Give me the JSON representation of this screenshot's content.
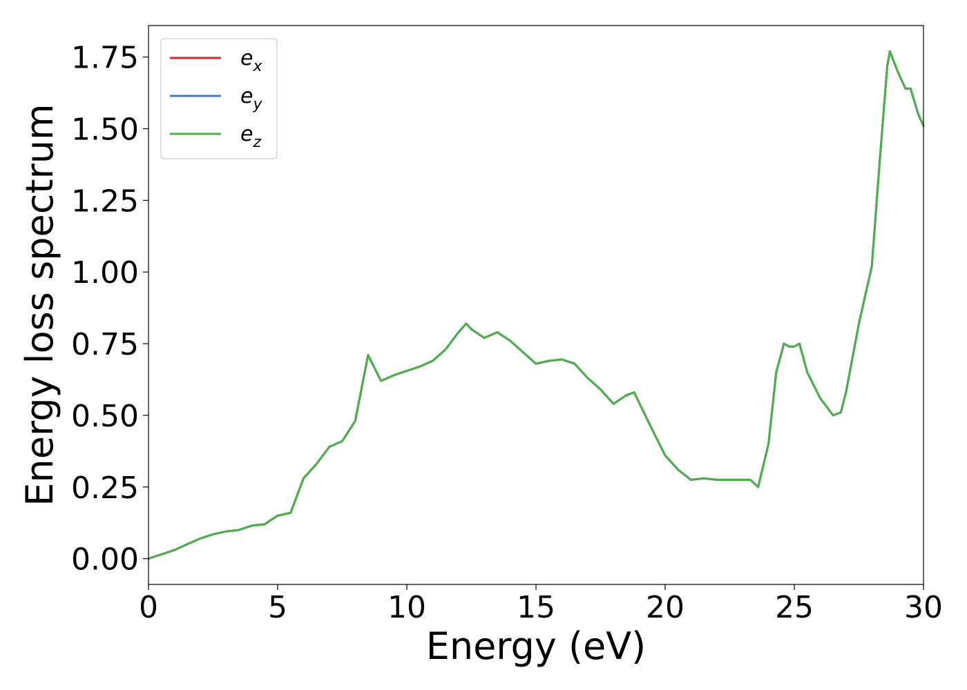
{
  "chart_data": {
    "type": "line",
    "xlabel": "Energy (eV)",
    "ylabel": "Energy loss spectrum",
    "xlim": [
      0,
      30
    ],
    "ylim": [
      -0.09,
      1.86
    ],
    "xticks": [
      "0",
      "5",
      "10",
      "15",
      "20",
      "25",
      "30"
    ],
    "yticks": [
      "0.00",
      "0.25",
      "0.50",
      "0.75",
      "1.00",
      "1.25",
      "1.50",
      "1.75"
    ],
    "grid": false,
    "legend_position": "top-left",
    "series": [
      {
        "name": "e_x",
        "label_base": "e",
        "label_sub": "x",
        "color": "#d62728",
        "x": [
          0,
          0.5,
          1,
          1.5,
          2,
          2.5,
          3,
          3.5,
          4,
          4.5,
          5,
          5.5,
          6,
          6.5,
          7,
          7.5,
          8,
          8.5,
          9,
          9.5,
          10,
          10.5,
          11,
          11.5,
          12,
          12.3,
          12.5,
          13,
          13.5,
          14,
          14.5,
          15,
          15.5,
          16,
          16.5,
          17,
          17.5,
          18,
          18.5,
          18.8,
          19.5,
          20,
          20.5,
          21,
          21.5,
          22,
          22.5,
          23,
          23.3,
          23.6,
          24,
          24.3,
          24.6,
          24.8,
          25,
          25.2,
          25.5,
          26,
          26.5,
          26.8,
          27,
          27.5,
          28,
          28.3,
          28.6,
          28.7,
          29,
          29.3,
          29.5,
          29.8,
          30
        ],
        "y": [
          0.0,
          0.015,
          0.03,
          0.05,
          0.07,
          0.085,
          0.095,
          0.1,
          0.115,
          0.12,
          0.15,
          0.16,
          0.28,
          0.33,
          0.39,
          0.41,
          0.48,
          0.71,
          0.62,
          0.64,
          0.655,
          0.67,
          0.69,
          0.73,
          0.79,
          0.82,
          0.8,
          0.77,
          0.79,
          0.76,
          0.72,
          0.68,
          0.69,
          0.695,
          0.68,
          0.63,
          0.59,
          0.54,
          0.57,
          0.58,
          0.45,
          0.36,
          0.31,
          0.275,
          0.28,
          0.275,
          0.275,
          0.275,
          0.275,
          0.25,
          0.4,
          0.65,
          0.75,
          0.74,
          0.74,
          0.75,
          0.65,
          0.56,
          0.5,
          0.51,
          0.58,
          0.82,
          1.02,
          1.38,
          1.72,
          1.77,
          1.7,
          1.64,
          1.64,
          1.55,
          1.51
        ]
      },
      {
        "name": "e_y",
        "label_base": "e",
        "label_sub": "y",
        "color": "#377eb8",
        "x": [
          0,
          0.5,
          1,
          1.5,
          2,
          2.5,
          3,
          3.5,
          4,
          4.5,
          5,
          5.5,
          6,
          6.5,
          7,
          7.5,
          8,
          8.5,
          9,
          9.5,
          10,
          10.5,
          11,
          11.5,
          12,
          12.3,
          12.5,
          13,
          13.5,
          14,
          14.5,
          15,
          15.5,
          16,
          16.5,
          17,
          17.5,
          18,
          18.5,
          18.8,
          19.5,
          20,
          20.5,
          21,
          21.5,
          22,
          22.5,
          23,
          23.3,
          23.6,
          24,
          24.3,
          24.6,
          24.8,
          25,
          25.2,
          25.5,
          26,
          26.5,
          26.8,
          27,
          27.5,
          28,
          28.3,
          28.6,
          28.7,
          29,
          29.3,
          29.5,
          29.8,
          30
        ],
        "y": [
          0.0,
          0.015,
          0.03,
          0.05,
          0.07,
          0.085,
          0.095,
          0.1,
          0.115,
          0.12,
          0.15,
          0.16,
          0.28,
          0.33,
          0.39,
          0.41,
          0.48,
          0.71,
          0.62,
          0.64,
          0.655,
          0.67,
          0.69,
          0.73,
          0.79,
          0.82,
          0.8,
          0.77,
          0.79,
          0.76,
          0.72,
          0.68,
          0.69,
          0.695,
          0.68,
          0.63,
          0.59,
          0.54,
          0.57,
          0.58,
          0.45,
          0.36,
          0.31,
          0.275,
          0.28,
          0.275,
          0.275,
          0.275,
          0.275,
          0.25,
          0.4,
          0.65,
          0.75,
          0.74,
          0.74,
          0.75,
          0.65,
          0.56,
          0.5,
          0.51,
          0.58,
          0.82,
          1.02,
          1.38,
          1.72,
          1.77,
          1.7,
          1.64,
          1.64,
          1.55,
          1.51
        ]
      },
      {
        "name": "e_z",
        "label_base": "e",
        "label_sub": "z",
        "color": "#4daf4a",
        "x": [
          0,
          0.5,
          1,
          1.5,
          2,
          2.5,
          3,
          3.5,
          4,
          4.5,
          5,
          5.5,
          6,
          6.5,
          7,
          7.5,
          8,
          8.5,
          9,
          9.5,
          10,
          10.5,
          11,
          11.5,
          12,
          12.3,
          12.5,
          13,
          13.5,
          14,
          14.5,
          15,
          15.5,
          16,
          16.5,
          17,
          17.5,
          18,
          18.5,
          18.8,
          19.5,
          20,
          20.5,
          21,
          21.5,
          22,
          22.5,
          23,
          23.3,
          23.6,
          24,
          24.3,
          24.6,
          24.8,
          25,
          25.2,
          25.5,
          26,
          26.5,
          26.8,
          27,
          27.5,
          28,
          28.3,
          28.6,
          28.7,
          29,
          29.3,
          29.5,
          29.8,
          30
        ],
        "y": [
          0.0,
          0.015,
          0.03,
          0.05,
          0.07,
          0.085,
          0.095,
          0.1,
          0.115,
          0.12,
          0.15,
          0.16,
          0.28,
          0.33,
          0.39,
          0.41,
          0.48,
          0.71,
          0.62,
          0.64,
          0.655,
          0.67,
          0.69,
          0.73,
          0.79,
          0.82,
          0.8,
          0.77,
          0.79,
          0.76,
          0.72,
          0.68,
          0.69,
          0.695,
          0.68,
          0.63,
          0.59,
          0.54,
          0.57,
          0.58,
          0.45,
          0.36,
          0.31,
          0.275,
          0.28,
          0.275,
          0.275,
          0.275,
          0.275,
          0.25,
          0.4,
          0.65,
          0.75,
          0.74,
          0.74,
          0.75,
          0.65,
          0.56,
          0.5,
          0.51,
          0.58,
          0.82,
          1.02,
          1.38,
          1.72,
          1.77,
          1.7,
          1.64,
          1.64,
          1.55,
          1.51
        ]
      }
    ]
  }
}
